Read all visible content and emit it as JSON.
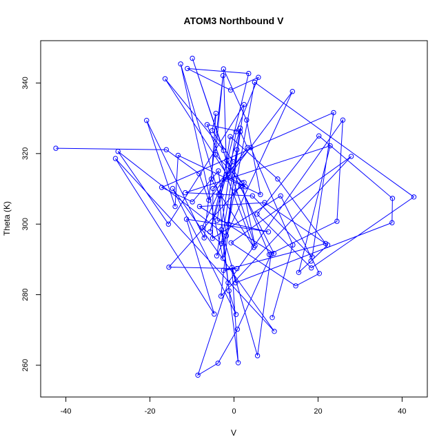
{
  "chart_data": {
    "type": "scatter",
    "title": "ATOM3 Northbound V",
    "xlabel": "V",
    "ylabel": "Theta (K)",
    "xlim": [
      -46,
      46
    ],
    "ylim": [
      251,
      352
    ],
    "xticks": [
      -40,
      -20,
      0,
      20,
      40
    ],
    "yticks": [
      260,
      280,
      300,
      320,
      340
    ],
    "grid": false,
    "line_color": "#0000ff",
    "series": [
      {
        "connected": true,
        "points": [
          [
            -42.4,
            321.5
          ],
          [
            -16.1,
            321.1
          ],
          [
            -8.3,
            314.3
          ],
          [
            -6.0,
            306.8
          ],
          [
            3.2,
            321.7
          ],
          [
            1.5,
            326.2
          ],
          [
            -6.4,
            328.2
          ],
          [
            4.7,
            293.4
          ],
          [
            -3.1,
            308.1
          ],
          [
            -5.4,
            312.8
          ],
          [
            -4.3,
            331.4
          ],
          [
            -5.2,
            326.5
          ],
          [
            -0.2,
            317.7
          ],
          [
            -7.6,
            299.0
          ],
          [
            -3.0,
            294.5
          ],
          [
            1.5,
            327.2
          ],
          [
            -5.7,
            297.8
          ],
          [
            3.5,
            342.7
          ],
          [
            -11.1,
            344.1
          ],
          [
            -0.8,
            338.0
          ],
          [
            5.8,
            341.6
          ],
          [
            0.5,
            326.2
          ],
          [
            -4.1,
            291.0
          ],
          [
            13.9,
            337.6
          ],
          [
            -1.7,
            312.8
          ],
          [
            -2.5,
            344.0
          ],
          [
            3.0,
            329.5
          ],
          [
            6.3,
            308.4
          ],
          [
            -13.3,
            319.5
          ],
          [
            -14.0,
            305.0
          ],
          [
            -20.8,
            329.4
          ],
          [
            -7.1,
            296.1
          ],
          [
            -2.6,
            342.1
          ],
          [
            -4.4,
            319.7
          ],
          [
            2.7,
            310.6
          ],
          [
            -1.2,
            313.2
          ],
          [
            -16.4,
            341.2
          ],
          [
            -2.5,
            320.9
          ],
          [
            -9.9,
            347.0
          ],
          [
            5.0,
            293.9
          ],
          [
            1.9,
            311.7
          ],
          [
            -1.7,
            318.1
          ],
          [
            9.5,
            291.7
          ],
          [
            -8.2,
            305.0
          ],
          [
            7.3,
            306.1
          ],
          [
            22.3,
            294.1
          ],
          [
            18.3,
            289.5
          ],
          [
            15.4,
            286.3
          ],
          [
            22.9,
            322.2
          ],
          [
            -11.6,
            308.9
          ],
          [
            4.4,
            308.0
          ],
          [
            18.6,
            290.7
          ],
          [
            23.7,
            331.6
          ],
          [
            -17.2,
            310.4
          ],
          [
            -9.9,
            306.3
          ],
          [
            -3.7,
            315.1
          ],
          [
            -1.8,
            296.7
          ],
          [
            -27.6,
            320.6
          ],
          [
            -15.6,
            300.0
          ],
          [
            2.4,
            333.9
          ],
          [
            -2.6,
            290.3
          ],
          [
            -12.7,
            345.4
          ],
          [
            -3.6,
            308.4
          ],
          [
            -1.2,
            281.1
          ],
          [
            0.5,
            274.4
          ],
          [
            -14.6,
            310.1
          ],
          [
            9.6,
            269.6
          ],
          [
            -28.2,
            318.6
          ],
          [
            -4.7,
            274.5
          ],
          [
            -11.3,
            301.4
          ],
          [
            8.2,
            297.8
          ],
          [
            -4.0,
            301.1
          ],
          [
            -0.9,
            324.8
          ],
          [
            10.4,
            312.8
          ],
          [
            21.8,
            294.5
          ],
          [
            -2.5,
            286.9
          ],
          [
            0.7,
            287.4
          ],
          [
            -15.5,
            287.8
          ],
          [
            2.4,
            311.8
          ],
          [
            0.1,
            309.1
          ],
          [
            1.6,
            310.7
          ],
          [
            8.4,
            291.4
          ],
          [
            24.5,
            300.8
          ],
          [
            25.9,
            329.5
          ],
          [
            -1.4,
            283.4
          ],
          [
            -8.6,
            257.2
          ],
          [
            -3.8,
            260.6
          ],
          [
            0.8,
            270.2
          ],
          [
            8.8,
            291.4
          ],
          [
            5.6,
            262.7
          ],
          [
            -3.0,
            298.4
          ],
          [
            1.0,
            260.7
          ],
          [
            -0.5,
            287.7
          ],
          [
            0.4,
            283.4
          ],
          [
            37.6,
            300.4
          ],
          [
            37.7,
            307.3
          ],
          [
            20.2,
            325.0
          ],
          [
            5.5,
            302.8
          ],
          [
            18.4,
            287.6
          ],
          [
            42.8,
            307.7
          ],
          [
            4.9,
            340.2
          ],
          [
            -1.3,
            300.0
          ],
          [
            0.7,
            321.1
          ],
          [
            -3.1,
            279.6
          ],
          [
            27.9,
            319.2
          ],
          [
            -0.7,
            294.7
          ],
          [
            14.7,
            282.5
          ],
          [
            20.3,
            286.0
          ],
          [
            11.1,
            308.0
          ],
          [
            -5.1,
            296.0
          ],
          [
            -5.0,
            310.1
          ],
          [
            4.0,
            321.7
          ],
          [
            14.0,
            294.1
          ],
          [
            9.1,
            273.5
          ]
        ]
      }
    ]
  }
}
